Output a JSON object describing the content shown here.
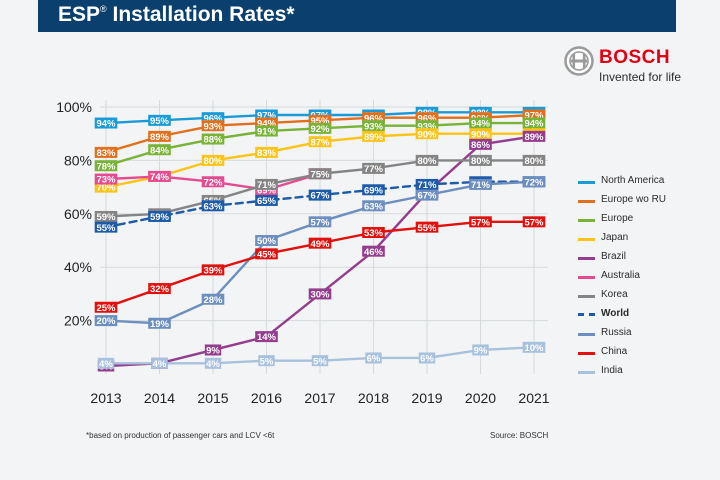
{
  "header": {
    "title_main": "ESP",
    "title_sup": "®",
    "title_rest": " Installation Rates*"
  },
  "brand": {
    "name": "BOSCH",
    "tagline": "Invented for life",
    "color": "#e20015"
  },
  "footnote": "*based on production of passenger cars and LCV <6t",
  "source": "Source: BOSCH",
  "chart_data": {
    "type": "line",
    "categories": [
      "2013",
      "2014",
      "2015",
      "2016",
      "2017",
      "2018",
      "2019",
      "2020",
      "2021"
    ],
    "y_ticks": [
      "20%",
      "40%",
      "60%",
      "80%",
      "100%"
    ],
    "ylim": [
      0,
      100
    ],
    "grid": true,
    "legend_position": "right",
    "series": [
      {
        "name": "North America",
        "color": "#1a9bd7",
        "values": [
          94,
          95,
          96,
          97,
          97,
          97,
          98,
          98,
          98
        ],
        "labels": [
          "94%",
          "95%",
          "96%",
          "97%",
          "97%",
          "97%",
          "98%",
          "98%",
          "98%"
        ]
      },
      {
        "name": "Europe wo RU",
        "color": "#e0701d",
        "values": [
          83,
          89,
          93,
          94,
          95,
          96,
          96,
          96,
          97
        ],
        "labels": [
          "83%",
          "89%",
          "93%",
          "94%",
          "95%",
          "96%",
          "96%",
          "96%",
          "97%"
        ]
      },
      {
        "name": "Europe",
        "color": "#78b236",
        "values": [
          78,
          84,
          88,
          91,
          92,
          93,
          93,
          94,
          94
        ],
        "labels": [
          "78%",
          "84%",
          "88%",
          "91%",
          "92%",
          "93%",
          "93%",
          "94%",
          "94%"
        ]
      },
      {
        "name": "Japan",
        "color": "#fcc318",
        "values": [
          70,
          74,
          80,
          83,
          87,
          89,
          90,
          90,
          90
        ],
        "labels": [
          "70%",
          "74%",
          "80%",
          "83%",
          "87%",
          "89%",
          "90%",
          "90%",
          "90%"
        ]
      },
      {
        "name": "Brazil",
        "color": "#943c8e",
        "values": [
          3,
          4,
          9,
          14,
          30,
          46,
          68,
          86,
          89
        ],
        "labels": [
          "3%",
          "4%",
          "9%",
          "14%",
          "30%",
          "46%",
          "68%",
          "86%",
          "89%"
        ]
      },
      {
        "name": "Australia",
        "color": "#e54b90",
        "values": [
          73,
          74,
          72,
          69,
          75,
          null,
          null,
          null,
          null
        ],
        "labels": [
          "73%",
          "74%",
          "72%",
          "69%",
          "75%",
          "",
          "",
          "",
          ""
        ]
      },
      {
        "name": "Korea",
        "color": "#848484",
        "values": [
          59,
          60,
          65,
          71,
          75,
          77,
          80,
          80,
          80
        ],
        "labels": [
          "59%",
          "60%",
          "65%",
          "71%",
          "75%",
          "77%",
          "80%",
          "80%",
          "80%"
        ]
      },
      {
        "name": "World",
        "color": "#1d5aa8",
        "dashed": true,
        "values": [
          55,
          59,
          63,
          65,
          67,
          69,
          71,
          72,
          72
        ],
        "labels": [
          "55%",
          "59%",
          "63%",
          "65%",
          "67%",
          "69%",
          "71%",
          "72%",
          "72%"
        ]
      },
      {
        "name": "Russia",
        "color": "#6d8fbf",
        "values": [
          20,
          19,
          28,
          50,
          57,
          63,
          67,
          71,
          72
        ],
        "labels": [
          "20%",
          "19%",
          "28%",
          "50%",
          "57%",
          "63%",
          "67%",
          "71%",
          "72%"
        ]
      },
      {
        "name": "China",
        "color": "#e2110e",
        "values": [
          25,
          32,
          39,
          45,
          49,
          53,
          55,
          57,
          57
        ],
        "labels": [
          "25%",
          "32%",
          "39%",
          "45%",
          "49%",
          "53%",
          "55%",
          "57%",
          "57%"
        ]
      },
      {
        "name": "India",
        "color": "#a8c1dd",
        "values": [
          4,
          4,
          4,
          5,
          5,
          6,
          6,
          9,
          10
        ],
        "labels": [
          "4%",
          "4%",
          "4%",
          "5%",
          "5%",
          "6%",
          "6%",
          "9%",
          "10%"
        ]
      }
    ]
  }
}
